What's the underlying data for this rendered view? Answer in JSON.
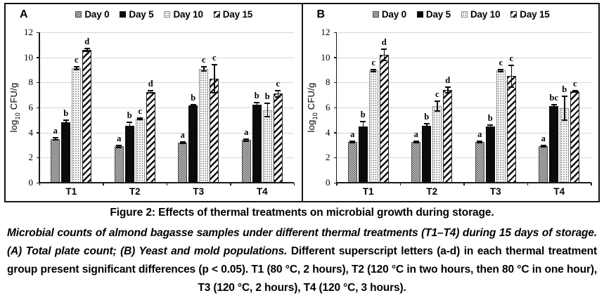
{
  "chart_data": [
    {
      "type": "bar",
      "panel_label": "A",
      "categories": [
        "T1",
        "T2",
        "T3",
        "T4"
      ],
      "series": [
        {
          "name": "Day 0",
          "pattern": "checker-gray",
          "values": [
            3.5,
            2.9,
            3.2,
            3.4
          ],
          "errors": [
            0.07,
            0.07,
            0.08,
            0.07
          ],
          "letters": [
            "a",
            "a",
            "a",
            "a"
          ]
        },
        {
          "name": "Day 5",
          "pattern": "solid-black",
          "values": [
            4.85,
            4.55,
            6.15,
            6.25
          ],
          "errors": [
            0.15,
            0.3,
            0.1,
            0.12
          ],
          "letters": [
            "b",
            "b",
            "b",
            "b"
          ]
        },
        {
          "name": "Day 10",
          "pattern": "dots",
          "values": [
            9.15,
            5.1,
            9.1,
            5.8
          ],
          "errors": [
            0.1,
            0.07,
            0.18,
            0.55
          ],
          "letters": [
            "c",
            "c",
            "c",
            "b"
          ]
        },
        {
          "name": "Day 15",
          "pattern": "diagonal-stripes",
          "values": [
            10.6,
            7.25,
            8.3,
            7.1
          ],
          "errors": [
            0.12,
            0.08,
            1.1,
            0.25
          ],
          "letters": [
            "d",
            "d",
            "c",
            "c"
          ]
        }
      ],
      "ylabel": {
        "pre": "log",
        "sub": "10",
        "post": " CFU/g"
      },
      "xlabel": "",
      "ylim": [
        0,
        12
      ],
      "yticks": [
        0,
        2,
        4,
        6,
        8,
        10,
        12
      ],
      "grid": true,
      "legend_position": "top"
    },
    {
      "type": "bar",
      "panel_label": "B",
      "categories": [
        "T1",
        "T2",
        "T3",
        "T4"
      ],
      "series": [
        {
          "name": "Day 0",
          "pattern": "checker-gray",
          "values": [
            3.25,
            3.25,
            3.25,
            2.9
          ],
          "errors": [
            0.06,
            0.06,
            0.07,
            0.06
          ],
          "letters": [
            "a",
            "a",
            "a",
            "a"
          ]
        },
        {
          "name": "Day 5",
          "pattern": "solid-black",
          "values": [
            4.5,
            4.55,
            4.5,
            6.1
          ],
          "errors": [
            0.38,
            0.15,
            0.08,
            0.15
          ],
          "letters": [
            "b",
            "b",
            "b",
            "bc"
          ]
        },
        {
          "name": "Day 10",
          "pattern": "dots",
          "values": [
            8.95,
            6.1,
            8.95,
            5.95
          ],
          "errors": [
            0.07,
            0.38,
            0.1,
            0.95
          ],
          "letters": [
            "c",
            "c",
            "c",
            "b"
          ]
        },
        {
          "name": "Day 15",
          "pattern": "diagonal-stripes",
          "values": [
            10.2,
            7.4,
            8.5,
            7.3
          ],
          "errors": [
            0.45,
            0.25,
            0.85,
            0.05
          ],
          "letters": [
            "d",
            "d",
            "c",
            "c"
          ]
        }
      ],
      "ylabel": {
        "pre": "log",
        "sub": "10",
        "post": " CFU/g"
      },
      "xlabel": "",
      "ylim": [
        0,
        12
      ],
      "yticks": [
        0,
        2,
        4,
        6,
        8,
        10,
        12
      ],
      "grid": true,
      "legend_position": "top"
    }
  ],
  "caption": {
    "title": "Figure 2: Effects of thermal treatments on microbial growth during storage.",
    "body_italic": "Microbial counts of almond bagasse samples under different thermal treatments (T1–T4) during 15 days of storage. (A) Total plate count; (B) Yeast and mold populations.",
    "body_regular": " Different superscript letters (a-d) in each thermal treatment group present significant differences (p < 0.05). T1 (80 °C, 2 hours), T2 (120 °C in two hours, then 80 °C in one hour), T3 (120 °C, 2 hours), T4 (120 °C, 3 hours)."
  },
  "colors": {
    "panel_border": "#141414",
    "axis": "#1a1a1a",
    "gridline": "#d6d6d6",
    "bar_solid": "#0b0b0b",
    "pattern_gray": "#565656",
    "background": "#ffffff"
  }
}
